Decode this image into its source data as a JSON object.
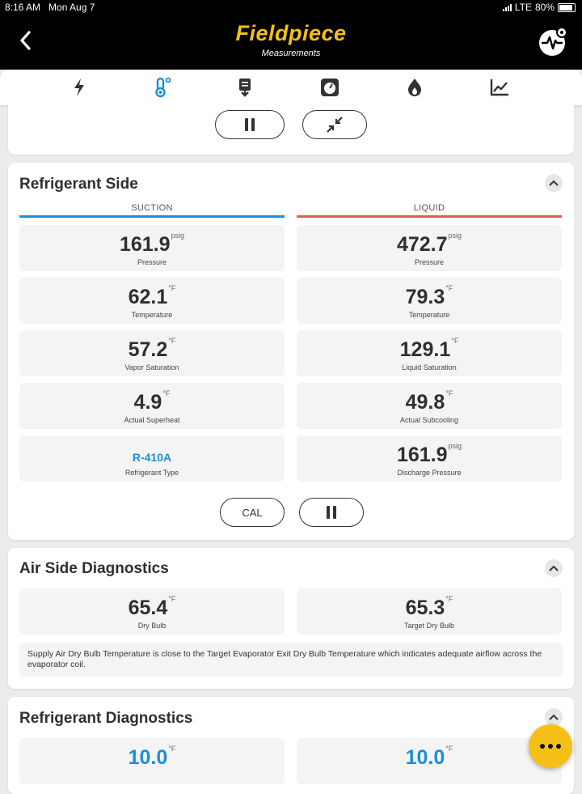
{
  "status_bar": {
    "time_date": "8:16 AM   Mon Aug 7",
    "network": "LTE",
    "battery": "80%"
  },
  "header": {
    "brand": "Fieldpiece",
    "subtitle": "Measurements"
  },
  "tabs": [
    {
      "icon": "lightning-icon"
    },
    {
      "icon": "thermometer-icon",
      "active": true
    },
    {
      "icon": "download-doc-icon"
    },
    {
      "icon": "gauge-icon"
    },
    {
      "icon": "flame-icon"
    },
    {
      "icon": "chart-icon"
    }
  ],
  "refrigerant_side": {
    "title": "Refrigerant Side",
    "suction_label": "SUCTION",
    "liquid_label": "LIQUID",
    "colors": {
      "suction": "#1a8fd6",
      "liquid": "#e05a5a"
    },
    "suction": [
      {
        "value": "161.9",
        "unit": "psig",
        "label": "Pressure"
      },
      {
        "value": "62.1",
        "unit": "°F",
        "label": "Temperature"
      },
      {
        "value": "57.2",
        "unit": "°F",
        "label": "Vapor Saturation"
      },
      {
        "value": "4.9",
        "unit": "°F",
        "label": "Actual Superheat"
      },
      {
        "value": "R-410A",
        "unit": "",
        "label": "Refrigerant Type"
      }
    ],
    "liquid": [
      {
        "value": "472.7",
        "unit": "psig",
        "label": "Pressure"
      },
      {
        "value": "79.3",
        "unit": "°F",
        "label": "Temperature"
      },
      {
        "value": "129.1",
        "unit": "°F",
        "label": "Liquid Saturation"
      },
      {
        "value": "49.8",
        "unit": "°F",
        "label": "Actual Subcooling"
      },
      {
        "value": "161.9",
        "unit": "psig",
        "label": "Discharge Pressure"
      }
    ],
    "cal_label": "CAL"
  },
  "air_side": {
    "title": "Air Side Diagnostics",
    "dry_bulb": {
      "value": "65.4",
      "unit": "°F",
      "label": "Dry Bulb"
    },
    "target_dry_bulb": {
      "value": "65.3",
      "unit": "°F",
      "label": "Target Dry Bulb"
    },
    "note": "Supply Air Dry Bulb Temperature is close to the Target Evaporator Exit Dry Bulb Temperature which indicates adequate airflow across the evaporator coil."
  },
  "refrigerant_diag": {
    "title": "Refrigerant Diagnostics",
    "target_superheat": {
      "value": "10.0",
      "unit": "°F"
    },
    "target_subcooling": {
      "value": "10.0",
      "unit": "°F"
    }
  }
}
